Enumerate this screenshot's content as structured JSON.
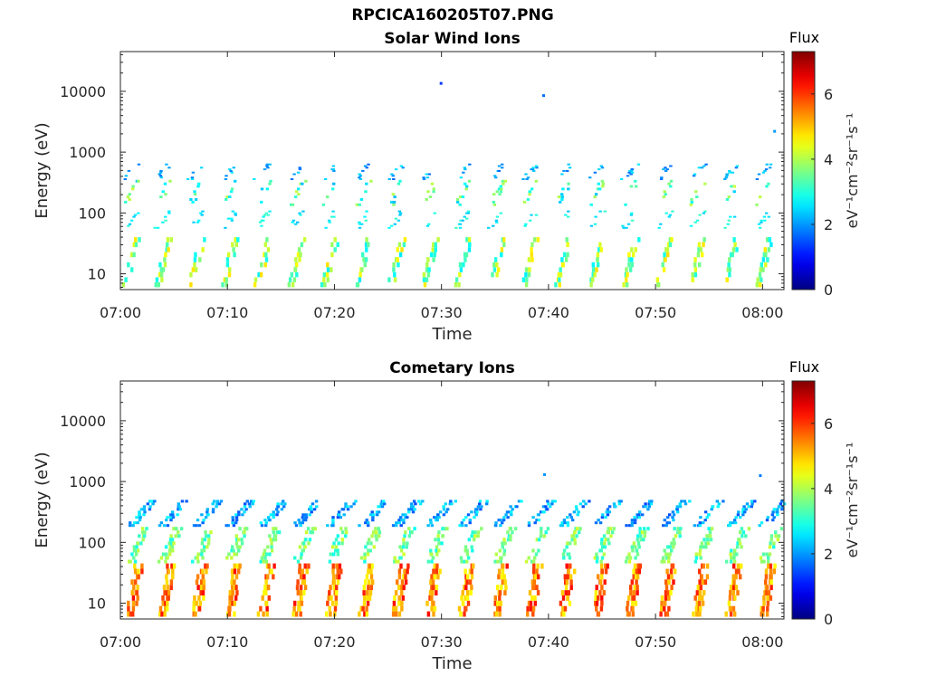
{
  "figure": {
    "title": "RPCICA160205T07.PNG"
  },
  "chart_data": [
    {
      "type": "heatmap",
      "title": "Solar Wind Ions",
      "xlabel": "Time",
      "ylabel": "Energy (eV)",
      "yscale": "log",
      "xlim": [
        "07:00",
        "08:02"
      ],
      "ylim": [
        5.5,
        45000
      ],
      "x_ticks": [
        "07:00",
        "07:10",
        "07:20",
        "07:30",
        "07:40",
        "07:50",
        "08:00"
      ],
      "y_ticks": [
        "10",
        "100",
        "1000",
        "10000"
      ],
      "colorbar": {
        "title": "Flux",
        "label": "eV⁻¹cm⁻²sr⁻¹s⁻¹",
        "range": [
          0,
          7.3
        ],
        "ticks": [
          "0",
          "2",
          "4",
          "6"
        ]
      },
      "grid": false,
      "colormap": "jet",
      "sweep_times_min": [
        0.2,
        3.2,
        6.3,
        9.4,
        12.5,
        15.7,
        18.8,
        21.9,
        25.0,
        28.1,
        31.2,
        34.4,
        37.5,
        40.6,
        43.7,
        46.8,
        50.0,
        53.1,
        56.2,
        59.3
      ],
      "bands": [
        {
          "e_min": 6,
          "e_max": 40,
          "flux_min": 2.6,
          "flux_max": 4.8
        },
        {
          "e_min": 55,
          "e_max": 110,
          "flux_min": 2.3,
          "flux_max": 3.2
        },
        {
          "e_min": 130,
          "e_max": 350,
          "flux_min": 2.2,
          "flux_max": 4.2
        },
        {
          "e_min": 350,
          "e_max": 650,
          "flux_min": 1.6,
          "flux_max": 2.6
        }
      ],
      "isolated_points": [
        {
          "time": "07:29:50",
          "energy": 13500,
          "flux": 1.3
        },
        {
          "time": "07:39:25",
          "energy": 8500,
          "flux": 1.7
        },
        {
          "time": "08:01:00",
          "energy": 2200,
          "flux": 2.0
        }
      ]
    },
    {
      "type": "heatmap",
      "title": "Cometary Ions",
      "xlabel": "Time",
      "ylabel": "Energy (eV)",
      "yscale": "log",
      "xlim": [
        "07:00",
        "08:02"
      ],
      "ylim": [
        5.5,
        45000
      ],
      "x_ticks": [
        "07:00",
        "07:10",
        "07:20",
        "07:30",
        "07:40",
        "07:50",
        "08:00"
      ],
      "y_ticks": [
        "10",
        "100",
        "1000",
        "10000"
      ],
      "colorbar": {
        "title": "Flux",
        "label": "eV⁻¹cm⁻²sr⁻¹s⁻¹",
        "range": [
          0,
          7.3
        ],
        "ticks": [
          "0",
          "2",
          "4",
          "6"
        ]
      },
      "grid": false,
      "colormap": "jet",
      "sweep_times_min": [
        0.2,
        3.2,
        6.3,
        9.4,
        12.5,
        15.7,
        18.8,
        21.9,
        25.0,
        28.1,
        31.2,
        34.4,
        37.5,
        40.6,
        43.7,
        46.8,
        50.0,
        53.1,
        56.2,
        59.3
      ],
      "bands": [
        {
          "e_min": 6,
          "e_max": 45,
          "flux_min": 4.5,
          "flux_max": 6.4
        },
        {
          "e_min": 45,
          "e_max": 180,
          "flux_min": 2.8,
          "flux_max": 4.3
        },
        {
          "e_min": 180,
          "e_max": 500,
          "flux_min": 1.4,
          "flux_max": 2.8
        }
      ],
      "isolated_points": [
        {
          "time": "07:39:30",
          "energy": 1300,
          "flux": 2.0
        },
        {
          "time": "07:59:40",
          "energy": 1250,
          "flux": 1.8
        }
      ]
    }
  ]
}
